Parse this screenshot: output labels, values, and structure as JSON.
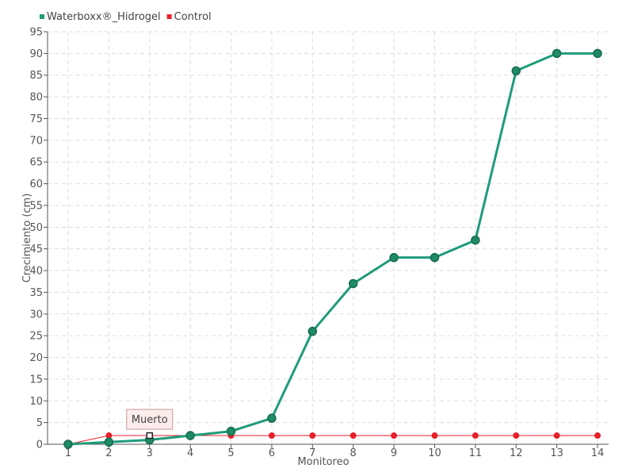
{
  "chart_data": {
    "type": "line",
    "title": "",
    "xlabel": "Monitoreo",
    "ylabel": "Crecimiento (cm)",
    "categories": [
      "1",
      "2",
      "3",
      "4",
      "5",
      "6",
      "7",
      "8",
      "9",
      "10",
      "11",
      "12",
      "13",
      "14"
    ],
    "ylim": [
      0,
      95
    ],
    "yticks": [
      0,
      5,
      10,
      15,
      20,
      25,
      30,
      35,
      40,
      45,
      50,
      55,
      60,
      65,
      70,
      75,
      80,
      85,
      90,
      95
    ],
    "grid": true,
    "legend_position": "top-left",
    "series": [
      {
        "name": "Waterboxx®_Hidrogel",
        "color": "#1f9b7a",
        "values": [
          0,
          0.5,
          1,
          2,
          3,
          6,
          26,
          37,
          43,
          43,
          47,
          86,
          90,
          90
        ]
      },
      {
        "name": "Control",
        "color": "#e8202a",
        "values": [
          0,
          2,
          2,
          2,
          2,
          2,
          2,
          2,
          2,
          2,
          2,
          2,
          2,
          2
        ]
      }
    ],
    "annotations": [
      {
        "text": "Muerto",
        "series": "Control",
        "category": "3",
        "value": 2
      }
    ]
  }
}
